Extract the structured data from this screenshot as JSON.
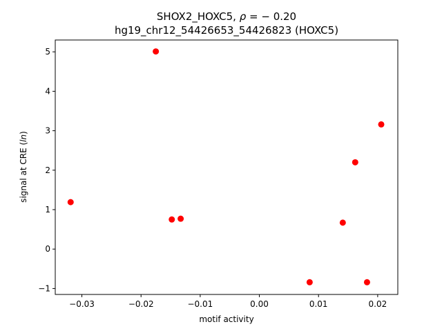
{
  "chart_data": {
    "type": "scatter",
    "title_line1_prefix": "SHOX2_HOXC5, ",
    "title_line1_rho": "ρ",
    "title_line1_suffix": " = − 0.20",
    "title_line2": "hg19_chr12_54426653_54426823 (HOXC5)",
    "xlabel": "motif activity",
    "ylabel_prefix": "signal at CRE (",
    "ylabel_italic": "ln",
    "ylabel_suffix": ")",
    "xlim": [
      -0.0345,
      0.0234
    ],
    "ylim": [
      -1.15,
      5.3
    ],
    "xticks": [
      -0.03,
      -0.02,
      -0.01,
      0.0,
      0.01,
      0.02
    ],
    "xtick_labels": [
      "−0.03",
      "−0.02",
      "−0.01",
      "0.00",
      "0.01",
      "0.02"
    ],
    "yticks": [
      -1,
      0,
      1,
      2,
      3,
      4,
      5
    ],
    "ytick_labels": [
      "−1",
      "0",
      "1",
      "2",
      "3",
      "4",
      "5"
    ],
    "marker_color": "#ff0000",
    "points": [
      {
        "x": -0.0175,
        "y": 5.01
      },
      {
        "x": -0.0319,
        "y": 1.19
      },
      {
        "x": -0.0148,
        "y": 0.75
      },
      {
        "x": -0.0133,
        "y": 0.77
      },
      {
        "x": 0.0085,
        "y": -0.84
      },
      {
        "x": 0.0141,
        "y": 0.67
      },
      {
        "x": 0.0162,
        "y": 2.2
      },
      {
        "x": 0.0182,
        "y": -0.84
      },
      {
        "x": 0.0206,
        "y": 3.16
      }
    ]
  }
}
